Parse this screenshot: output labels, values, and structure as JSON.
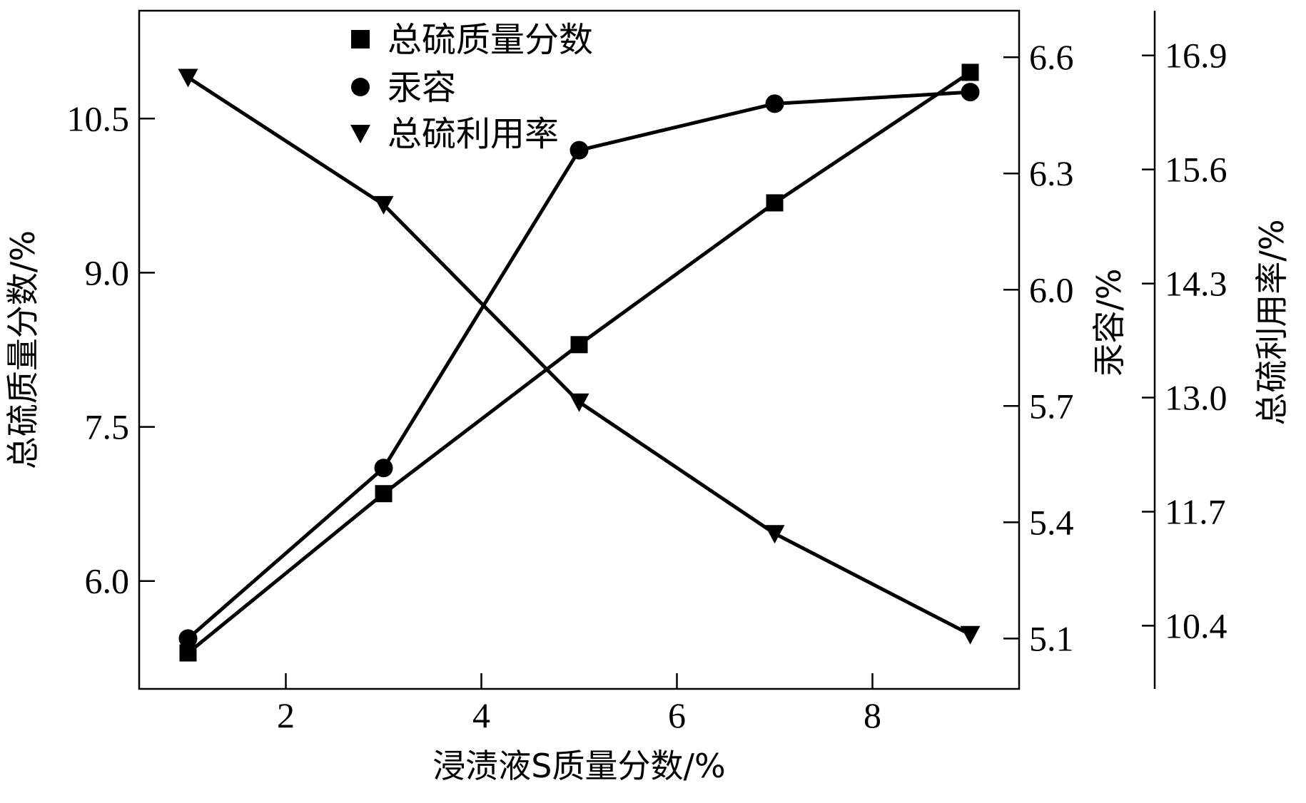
{
  "chart_data": {
    "type": "line",
    "xlabel": "浸渍液S质量分数/%",
    "xlim": [
      0.5,
      9.5
    ],
    "xticks": [
      2,
      4,
      6,
      8
    ],
    "axes": {
      "left": {
        "label": "总硫质量分数/%",
        "lim": [
          4.95,
          11.55
        ],
        "ticks": [
          "6.0",
          "7.5",
          "9.0",
          "10.5"
        ]
      },
      "right1": {
        "label": "汞容/%",
        "lim": [
          4.97,
          6.72
        ],
        "ticks": [
          "5.1",
          "5.4",
          "5.7",
          "6.0",
          "6.3",
          "6.6"
        ]
      },
      "right2": {
        "label": "总硫利用率/%",
        "lim": [
          9.68,
          17.41
        ],
        "ticks": [
          "10.4",
          "11.7",
          "13.0",
          "14.3",
          "15.6",
          "16.9"
        ]
      }
    },
    "x": [
      1,
      3,
      5,
      7,
      9
    ],
    "series": [
      {
        "name": "总硫质量分数",
        "axis": "left",
        "marker": "square",
        "values": [
          5.3,
          6.85,
          8.3,
          9.68,
          10.95
        ]
      },
      {
        "name": "汞容",
        "axis": "right1",
        "marker": "circle",
        "values": [
          5.1,
          5.54,
          6.36,
          6.48,
          6.51
        ]
      },
      {
        "name": "总硫利用率",
        "axis": "right2",
        "marker": "triangle-down",
        "values": [
          16.65,
          15.2,
          12.95,
          11.45,
          10.3
        ]
      }
    ],
    "grid": false,
    "legend_position": "top-center"
  },
  "colors": {
    "line": "#000000",
    "background": "#ffffff"
  }
}
